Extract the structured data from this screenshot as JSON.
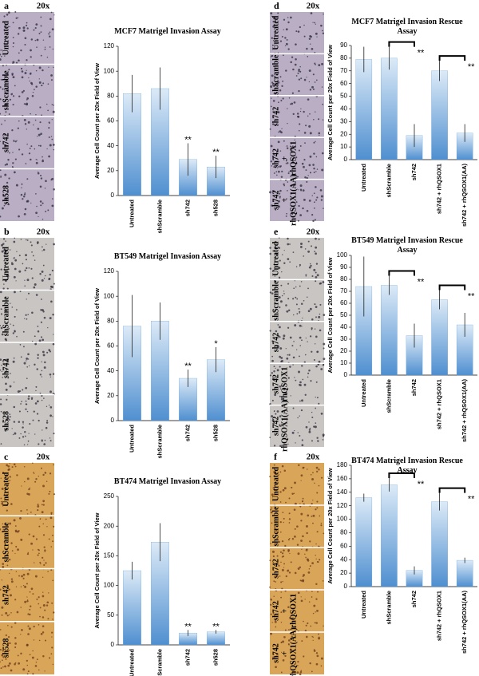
{
  "chart_data": [
    {
      "type": "bar",
      "title": "MCF7 Matrigel Invasion Assay",
      "y_label": "Average Cell Count per 20x Field of View",
      "categories": [
        "Untreated",
        "shScramble",
        "sh742",
        "sh528"
      ],
      "values": [
        82,
        86,
        29,
        23
      ],
      "errors": [
        15,
        17,
        13,
        9
      ],
      "significance": [
        null,
        null,
        "**",
        "**"
      ],
      "significance_style": "above",
      "ylim": [
        0,
        120
      ],
      "yticks": [
        0,
        20,
        40,
        60,
        80,
        100,
        120
      ],
      "color": "#5b9bd5"
    },
    {
      "type": "bar",
      "title": "BT549 Matrigel Invasion Assay",
      "y_label": "Average Cell Count per 20x Field of View",
      "categories": [
        "Untreated",
        "shScramble",
        "sh742",
        "sh528"
      ],
      "values": [
        76,
        80,
        34,
        49
      ],
      "errors": [
        25,
        15,
        7,
        10
      ],
      "significance": [
        null,
        null,
        "**",
        "*"
      ],
      "significance_style": "above",
      "ylim": [
        0,
        120
      ],
      "yticks": [
        0,
        20,
        40,
        60,
        80,
        100,
        120
      ],
      "color": "#5b9bd5"
    },
    {
      "type": "bar",
      "title": "BT474 Matrigel Invasion Assay",
      "y_label": "Average Cell Count per 20x Field of View",
      "categories": [
        "Untreated",
        "shScramble",
        "sh742",
        "sh528"
      ],
      "values": [
        125,
        173,
        20,
        22
      ],
      "errors": [
        15,
        32,
        5,
        3
      ],
      "significance": [
        null,
        null,
        "**",
        "**"
      ],
      "significance_style": "above",
      "ylim": [
        0,
        250
      ],
      "yticks": [
        0,
        50,
        100,
        150,
        200,
        250
      ],
      "color": "#5b9bd5"
    },
    {
      "type": "bar",
      "title": "MCF7 Matrigel Invasion Rescue Assay",
      "y_label": "Average Cell Count per 20x Field of View",
      "categories": [
        "Untreated",
        "shScramble",
        "sh742",
        "sh742 + rhQSOX1",
        "sh742 + rhQSOX1(AA)"
      ],
      "values": [
        79,
        80,
        19,
        70,
        21
      ],
      "errors": [
        10,
        9,
        9,
        8,
        7
      ],
      "significance": [
        null,
        null,
        "**",
        null,
        "**"
      ],
      "significance_style": "bracket",
      "ylim": [
        0,
        90
      ],
      "yticks": [
        0,
        10,
        20,
        30,
        40,
        50,
        60,
        70,
        80,
        90
      ],
      "color": "#5b9bd5"
    },
    {
      "type": "bar",
      "title": "BT549 Matrigel Invasion Rescue Assay",
      "y_label": "Average Cell Count per 20x Field of View",
      "categories": [
        "Untreated",
        "shScramble",
        "sh742",
        "sh742 + rhQSOX1",
        "sh742 + rhQSOX1(AA)"
      ],
      "values": [
        74,
        75,
        33,
        63,
        42
      ],
      "errors": [
        25,
        8,
        10,
        8,
        10
      ],
      "significance": [
        null,
        null,
        "**",
        null,
        "**"
      ],
      "significance_style": "bracket",
      "ylim": [
        0,
        100
      ],
      "yticks": [
        0,
        10,
        20,
        30,
        40,
        50,
        60,
        70,
        80,
        90,
        100
      ],
      "color": "#5b9bd5"
    },
    {
      "type": "bar",
      "title": "BT474 Matrigel Invasion Rescue Assay",
      "y_label": "Average Cell Count per 20x Field of View",
      "categories": [
        "Untreated",
        "shScramble",
        "sh742",
        "sh742 + rhQSOX1",
        "sh742 + rhQSOX1(AA)"
      ],
      "values": [
        132,
        151,
        24,
        126,
        39
      ],
      "errors": [
        6,
        10,
        6,
        13,
        4
      ],
      "significance": [
        null,
        null,
        "**",
        null,
        "**"
      ],
      "significance_style": "bracket",
      "ylim": [
        0,
        180
      ],
      "yticks": [
        0,
        20,
        40,
        60,
        80,
        100,
        120,
        140,
        160,
        180
      ],
      "color": "#5b9bd5"
    }
  ],
  "panels": [
    {
      "letter": "a",
      "magnification": "20x",
      "image_color": "#b9aec3",
      "image_labels": [
        [
          "Untreated"
        ],
        [
          "shScramble"
        ],
        [
          "sh742"
        ],
        [
          "sh528"
        ]
      ]
    },
    {
      "letter": "b",
      "magnification": "20x",
      "image_color": "#c9c5c3",
      "image_labels": [
        [
          "Untreated"
        ],
        [
          "shScramble"
        ],
        [
          "sh742"
        ],
        [
          "sh528"
        ]
      ]
    },
    {
      "letter": "c",
      "magnification": "20x",
      "image_color": "#d9a558",
      "image_labels": [
        [
          "Untreated"
        ],
        [
          "shScramble"
        ],
        [
          "sh742"
        ],
        [
          "sh528"
        ]
      ]
    },
    {
      "letter": "d",
      "magnification": "20x",
      "image_color": "#b9aec3",
      "image_labels": [
        [
          "Untreated"
        ],
        [
          "shScramble"
        ],
        [
          "sh742"
        ],
        [
          "sh742",
          "+",
          "rhQSOX1"
        ],
        [
          "sh742",
          "+",
          "rhQSOX1(AA)"
        ]
      ]
    },
    {
      "letter": "e",
      "magnification": "20x",
      "image_color": "#c9c5c3",
      "image_labels": [
        [
          "Untreated"
        ],
        [
          "shScramble"
        ],
        [
          "sh742"
        ],
        [
          "sh742",
          "rhQSOX1"
        ],
        [
          "sh742",
          "rhQSOX1(AA)"
        ]
      ]
    },
    {
      "letter": "f",
      "magnification": "20x",
      "image_color": "#d9a558",
      "image_labels": [
        [
          "Untreated"
        ],
        [
          "shScramble"
        ],
        [
          "sh742"
        ],
        [
          "sh742",
          "+",
          "rhQSOX1"
        ],
        [
          "sh742",
          "+",
          "rhQSOX1(AA)"
        ]
      ]
    }
  ]
}
